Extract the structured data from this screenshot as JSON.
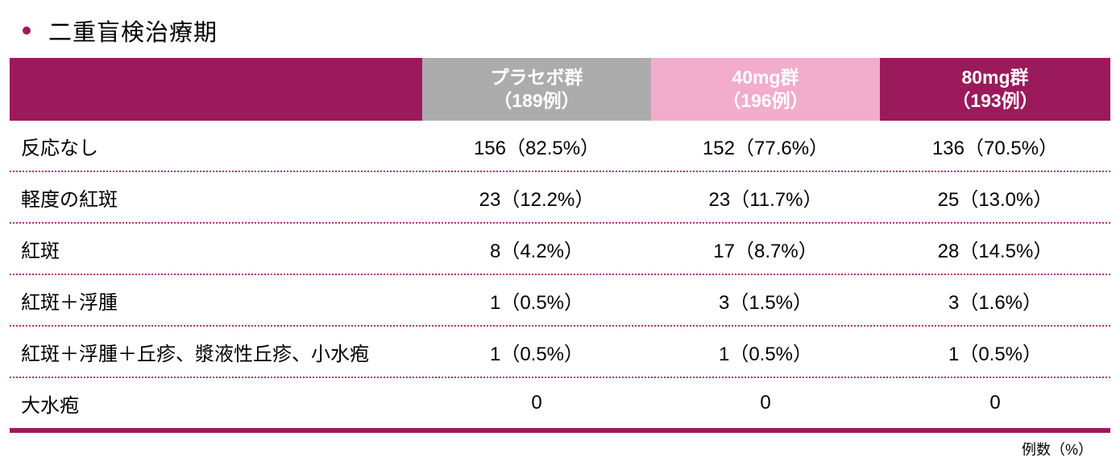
{
  "title": {
    "text": "二重盲検治療期"
  },
  "colors": {
    "accent_magenta": "#9b1a5b",
    "header_gray": "#acacac",
    "header_pink": "#f2accc",
    "dotted_separator": "#b03077"
  },
  "table": {
    "columns": [
      {
        "label_line1": "プラセボ群",
        "label_line2": "（189例）"
      },
      {
        "label_line1": "40mg群",
        "label_line2": "（196例）"
      },
      {
        "label_line1": "80mg群",
        "label_line2": "（193例）"
      }
    ],
    "rows": [
      {
        "label": "反応なし",
        "values": [
          "156（82.5%）",
          "152（77.6%）",
          "136（70.5%）"
        ]
      },
      {
        "label": "軽度の紅斑",
        "values": [
          "23（12.2%）",
          "23（11.7%）",
          "25（13.0%）"
        ]
      },
      {
        "label": "紅斑",
        "values": [
          "8（4.2%）",
          "17（8.7%）",
          "28（14.5%）"
        ]
      },
      {
        "label": "紅斑＋浮腫",
        "values": [
          "1（0.5%）",
          "3（1.5%）",
          "3（1.6%）"
        ]
      },
      {
        "label": "紅斑＋浮腫＋丘疹、漿液性丘疹、小水疱",
        "values": [
          "1（0.5%）",
          "1（0.5%）",
          "1（0.5%）"
        ]
      },
      {
        "label": "大水疱",
        "values": [
          "0",
          "0",
          "0"
        ]
      }
    ],
    "footnote": "例数（%）"
  }
}
